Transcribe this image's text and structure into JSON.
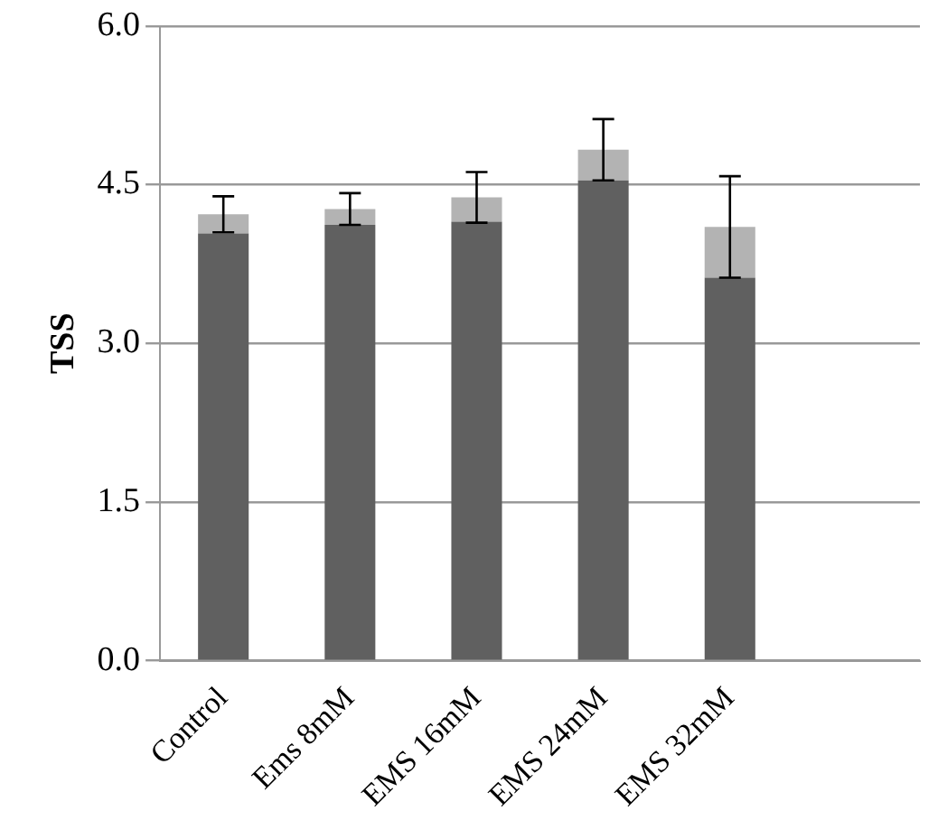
{
  "chart_data": {
    "type": "bar",
    "stacked": true,
    "ylabel": "TSS",
    "categories": [
      "Control",
      "Ems 8mM",
      "EMS 16mM",
      "EMS 24mM",
      "EMS 32mM",
      null
    ],
    "series": [
      {
        "color": "#606060",
        "values": [
          4.04,
          4.12,
          4.15,
          4.54,
          3.62,
          null
        ]
      },
      {
        "color": "#b3b3b3",
        "values": [
          0.18,
          0.15,
          0.23,
          0.29,
          0.48,
          null
        ],
        "errors": [
          0.17,
          0.15,
          0.24,
          0.29,
          0.48,
          null
        ]
      }
    ],
    "ylim": [
      0,
      6
    ],
    "yticks": [
      {
        "value": 0,
        "label": "0.0"
      },
      {
        "value": 1.5,
        "label": "1.5"
      },
      {
        "value": 3,
        "label": "3.0"
      },
      {
        "value": 4.5,
        "label": "4.5"
      },
      {
        "value": 6,
        "label": "6.0"
      }
    ],
    "grid": "y",
    "legend": false
  }
}
